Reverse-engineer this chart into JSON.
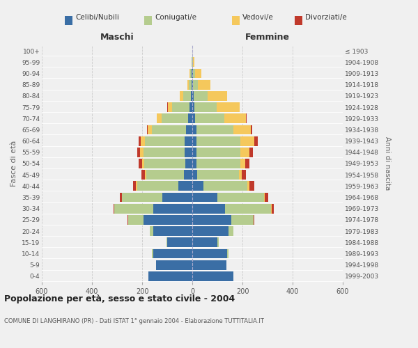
{
  "age_groups": [
    "0-4",
    "5-9",
    "10-14",
    "15-19",
    "20-24",
    "25-29",
    "30-34",
    "35-39",
    "40-44",
    "45-49",
    "50-54",
    "55-59",
    "60-64",
    "65-69",
    "70-74",
    "75-79",
    "80-84",
    "85-89",
    "90-94",
    "95-99",
    "100+"
  ],
  "birth_years": [
    "1999-2003",
    "1994-1998",
    "1989-1993",
    "1984-1988",
    "1979-1983",
    "1974-1978",
    "1969-1973",
    "1964-1968",
    "1959-1963",
    "1954-1958",
    "1949-1953",
    "1944-1948",
    "1939-1943",
    "1934-1938",
    "1929-1933",
    "1924-1928",
    "1919-1923",
    "1914-1918",
    "1909-1913",
    "1904-1908",
    "≤ 1903"
  ],
  "males": {
    "celibi": [
      175,
      145,
      155,
      100,
      155,
      195,
      155,
      120,
      55,
      32,
      28,
      30,
      30,
      25,
      18,
      10,
      5,
      3,
      2,
      1,
      0
    ],
    "coniugati": [
      0,
      0,
      5,
      2,
      15,
      60,
      155,
      160,
      165,
      150,
      165,
      165,
      160,
      135,
      105,
      70,
      30,
      12,
      5,
      1,
      0
    ],
    "vedovi": [
      0,
      0,
      0,
      0,
      0,
      0,
      0,
      0,
      5,
      6,
      8,
      12,
      15,
      18,
      18,
      18,
      15,
      5,
      3,
      1,
      0
    ],
    "divorziati": [
      0,
      0,
      0,
      0,
      0,
      2,
      5,
      10,
      12,
      15,
      12,
      12,
      10,
      3,
      2,
      2,
      0,
      0,
      0,
      0,
      0
    ]
  },
  "females": {
    "nubili": [
      165,
      135,
      140,
      100,
      145,
      155,
      130,
      100,
      45,
      20,
      18,
      18,
      18,
      18,
      12,
      8,
      5,
      3,
      2,
      1,
      0
    ],
    "coniugate": [
      0,
      0,
      5,
      5,
      20,
      90,
      185,
      185,
      175,
      165,
      175,
      175,
      175,
      145,
      115,
      90,
      55,
      20,
      10,
      2,
      0
    ],
    "vedove": [
      0,
      0,
      0,
      0,
      0,
      0,
      2,
      5,
      8,
      12,
      18,
      35,
      55,
      70,
      88,
      90,
      80,
      50,
      25,
      5,
      0
    ],
    "divorziate": [
      0,
      0,
      0,
      0,
      0,
      2,
      8,
      12,
      18,
      18,
      18,
      15,
      12,
      5,
      3,
      2,
      0,
      0,
      0,
      0,
      0
    ]
  },
  "colors": {
    "celibi": "#3A6EA5",
    "coniugati": "#B5CC8E",
    "vedovi": "#F5C85C",
    "divorziati": "#C0392B"
  },
  "xlim": 600,
  "title": "Popolazione per età, sesso e stato civile - 2004",
  "subtitle": "COMUNE DI LANGHIRANO (PR) - Dati ISTAT 1° gennaio 2004 - Elaborazione TUTTITALIA.IT",
  "ylabel": "Fasce di età",
  "ylabel2": "Anni di nascita",
  "xlabel_maschi": "Maschi",
  "xlabel_femmine": "Femmine",
  "legend_labels": [
    "Celibi/Nubili",
    "Coniugati/e",
    "Vedovi/e",
    "Divorziati/e"
  ],
  "bg_color": "#f0f0f0",
  "bar_height": 0.85
}
